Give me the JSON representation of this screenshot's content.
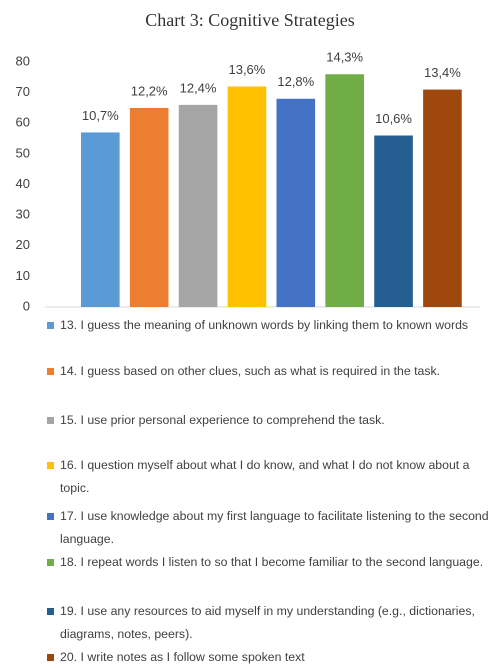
{
  "chart_data": {
    "type": "bar",
    "title": "Chart 3: Cognitive Strategies",
    "categories": [
      null
    ],
    "ylim": [
      0,
      80
    ],
    "yticks": [
      0,
      10,
      20,
      30,
      40,
      50,
      60,
      70,
      80
    ],
    "grid": false,
    "legend": "bottom",
    "series": [
      {
        "name": "13. I guess the meaning of unknown words by linking them to known words",
        "color": "#5b9bd5",
        "values": [
          57
        ],
        "share_label": "10,7%"
      },
      {
        "name": "14. I guess based on other clues, such as what is required in the task.",
        "color": "#ed7d31",
        "values": [
          65
        ],
        "share_label": "12,2%"
      },
      {
        "name": "15. I use prior personal experience to comprehend the task.",
        "color": "#a5a5a5",
        "values": [
          66
        ],
        "share_label": "12,4%"
      },
      {
        "name": "16. I question myself about what I do know, and what I do not know about a topic.",
        "color": "#ffc000",
        "values": [
          72
        ],
        "share_label": "13,6%"
      },
      {
        "name": "17. I use knowledge about my first language to facilitate listening to the second language.",
        "color": "#4472c4",
        "values": [
          68
        ],
        "share_label": "12,8%"
      },
      {
        "name": "18. I repeat words I listen to so that I become familiar to the second language.",
        "color": "#70ad47",
        "values": [
          76
        ],
        "share_label": "14,3%"
      },
      {
        "name": "19. I use any resources to aid myself in my understanding (e.g., dictionaries, diagrams, notes, peers).",
        "color": "#255e91",
        "values": [
          56
        ],
        "share_label": "10,6%"
      },
      {
        "name": "20. I write notes as I follow some spoken text",
        "color": "#9e480e",
        "values": [
          71
        ],
        "share_label": "13,4%"
      }
    ]
  }
}
